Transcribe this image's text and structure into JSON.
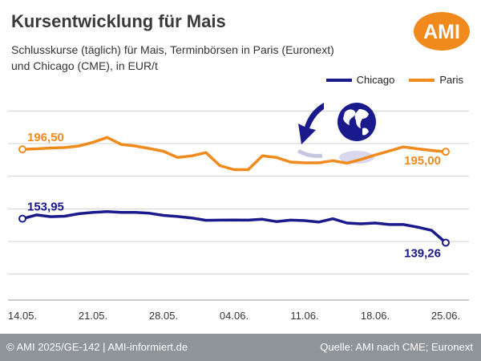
{
  "header": {
    "title": "Kursentwicklung für Mais",
    "subtitle": "Schlusskurse (täglich) für Mais, Terminbörsen in Paris (Euronext) und Chicago (CME), in EUR/t",
    "logo_text": "AMI"
  },
  "footer": {
    "left": "© AMI 2025/GE-142 | AMI-informiert.de",
    "right": "Quelle: AMI nach CME; Euronext"
  },
  "colors": {
    "chicago": "#1a1a8c",
    "paris": "#f08a1c",
    "grid": "#d0d0d0",
    "footer": "#8f9498"
  },
  "chart_data": {
    "type": "line",
    "x": [
      "14.05.",
      "15.05.",
      "16.05.",
      "19.05.",
      "20.05.",
      "21.05.",
      "22.05.",
      "23.05.",
      "26.05.",
      "27.05.",
      "28.05.",
      "29.05.",
      "30.05.",
      "02.06.",
      "03.06.",
      "04.06.",
      "05.06.",
      "06.06.",
      "09.06.",
      "10.06.",
      "11.06.",
      "12.06.",
      "13.06.",
      "16.06.",
      "17.06.",
      "18.06.",
      "19.06.",
      "20.06.",
      "23.06.",
      "24.06.",
      "25.06."
    ],
    "x_ticks": [
      "14.05.",
      "21.05.",
      "28.05.",
      "04.06.",
      "11.06.",
      "18.06.",
      "25.06."
    ],
    "series": [
      {
        "name": "Chicago",
        "color": "#1a1a8c",
        "values": [
          153.95,
          156.3,
          155.2,
          155.5,
          157.0,
          157.8,
          158.3,
          157.8,
          157.8,
          157.3,
          156.0,
          155.3,
          154.4,
          153.0,
          153.1,
          153.2,
          153.1,
          153.6,
          152.2,
          153.1,
          152.8,
          151.9,
          153.9,
          151.3,
          150.8,
          151.3,
          150.4,
          150.4,
          148.8,
          146.8,
          139.26
        ],
        "first_label": "153,95",
        "last_label": "139,26"
      },
      {
        "name": "Paris",
        "color": "#f08a1c",
        "values": [
          196.5,
          196.8,
          197.3,
          197.6,
          198.5,
          200.8,
          203.8,
          199.5,
          198.5,
          197.0,
          195.3,
          191.5,
          192.5,
          194.5,
          186.5,
          184.0,
          184.0,
          192.5,
          191.5,
          188.7,
          188.2,
          188.2,
          189.5,
          188.0,
          190.3,
          193.0,
          195.5,
          198.0,
          196.8,
          195.8,
          195.0
        ],
        "first_label": "196,50",
        "last_label": "195,00"
      }
    ],
    "xlabel": "",
    "ylabel": "",
    "ylim": [
      110,
      230
    ],
    "grid": true,
    "legend": "top-right"
  }
}
